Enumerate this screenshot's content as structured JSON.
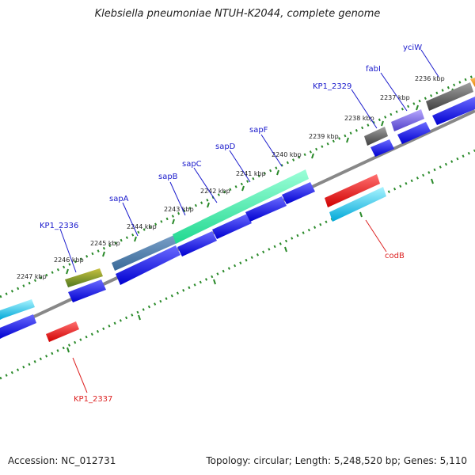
{
  "title": "Klebsiella pneumoniae NTUH-K2044, complete genome",
  "accession": "Accession: NC_012731",
  "summary": "Topology: circular; Length: 5,248,520 bp; Genes: 5,110",
  "kbp_labels": [
    "2247 kbp",
    "2246 kbp",
    "2245 kbp",
    "2244 kbp",
    "2243 kbp",
    "2242 kbp",
    "2241 kbp",
    "2240 kbp",
    "2239 kbp",
    "2238 kbp",
    "2237 kbp",
    "2236 kbp"
  ],
  "gene_labels": [
    "yciW",
    "fabI",
    "KP1_2329",
    "sapF",
    "sapD",
    "sapC",
    "sapB",
    "sapA",
    "KP1_2336",
    "codB",
    "KP1_2337"
  ],
  "colors": {
    "forward": "#1a1aff",
    "reverse": "#ff1a1a",
    "backbone": "#888888",
    "ticks": "#2a8a2a",
    "label_fwd": "#1a1acc",
    "label_rev": "#dd2222"
  }
}
